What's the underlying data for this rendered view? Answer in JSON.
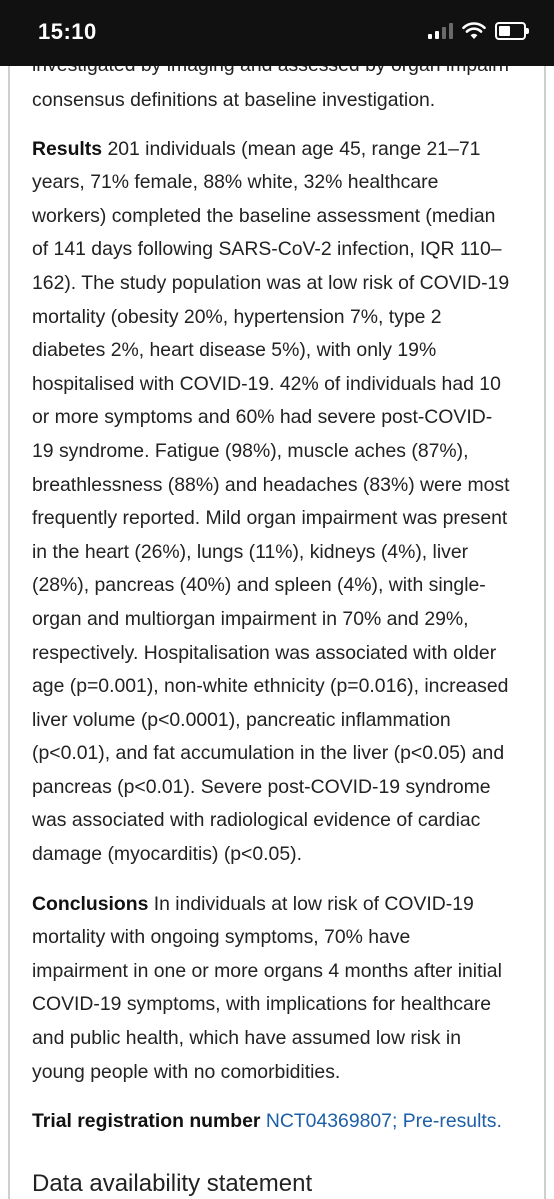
{
  "status_bar": {
    "time": "15:10",
    "icons": [
      "cellular-signal-icon",
      "wifi-icon",
      "battery-icon"
    ]
  },
  "article": {
    "clipped_top_line": "investigated by imaging and assessed by organ impairment",
    "methods_end": "consensus definitions at baseline investigation.",
    "results": {
      "label": "Results",
      "text": "201 individuals (mean age 45, range 21–71 years, 71% female, 88% white, 32% healthcare workers) completed the baseline assessment (median of 141 days following SARS-CoV-2 infection, IQR 110–162). The study population was at low risk of COVID-19 mortality (obesity 20%, hypertension 7%, type 2 diabetes 2%, heart disease 5%), with only 19% hospitalised with COVID-19. 42% of individuals had 10 or more symptoms and 60% had severe post-COVID-19 syndrome. Fatigue (98%), muscle aches (87%), breathlessness (88%) and headaches (83%) were most frequently reported. Mild organ impairment was present in the heart (26%), lungs (11%), kidneys (4%), liver (28%), pancreas (40%) and spleen (4%), with single-organ and multiorgan impairment in 70% and 29%, respectively. Hospitalisation was associated with older age (p=0.001), non-white ethnicity (p=0.016), increased liver volume (p<0.0001), pancreatic inflammation (p<0.01), and fat accumulation in the liver (p<0.05) and pancreas (p<0.01). Severe post-COVID-19 syndrome was associated with radiological evidence of cardiac damage (myocarditis) (p<0.05)."
    },
    "conclusions": {
      "label": "Conclusions",
      "text": "In individuals at low risk of COVID-19 mortality with ongoing symptoms, 70% have impairment in one or more organs 4 months after initial COVID-19 symptoms, with implications for healthcare and public health, which have assumed low risk in young people with no comorbidities."
    },
    "trial_registration": {
      "label": "Trial registration number",
      "link_text": "NCT04369807; Pre-results."
    },
    "next_section_heading": "Data availability statement"
  },
  "colors": {
    "status_bar_bg": "#111111",
    "text": "#222222",
    "link": "#1d5fa8"
  }
}
